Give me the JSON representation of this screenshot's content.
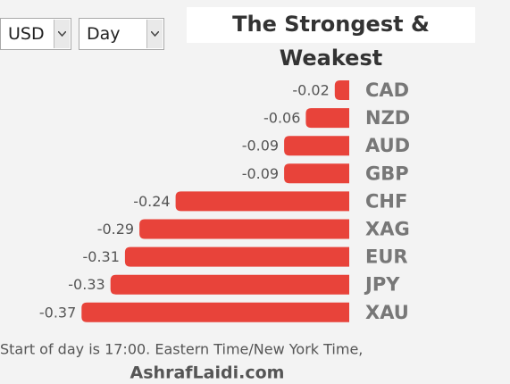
{
  "controls": {
    "currency": "USD",
    "period": "Day"
  },
  "chart_data": {
    "type": "bar",
    "orientation": "horizontal",
    "title": "The Strongest & Weakest",
    "categories": [
      "CAD",
      "NZD",
      "AUD",
      "GBP",
      "CHF",
      "XAG",
      "EUR",
      "JPY",
      "XAU"
    ],
    "values": [
      -0.02,
      -0.06,
      -0.09,
      -0.09,
      -0.24,
      -0.29,
      -0.31,
      -0.33,
      -0.37
    ],
    "color": "#e8433a",
    "note": "Start of day is 17:00. Eastern Time/New York Time,",
    "credit": "AshrafLaidi.com"
  }
}
